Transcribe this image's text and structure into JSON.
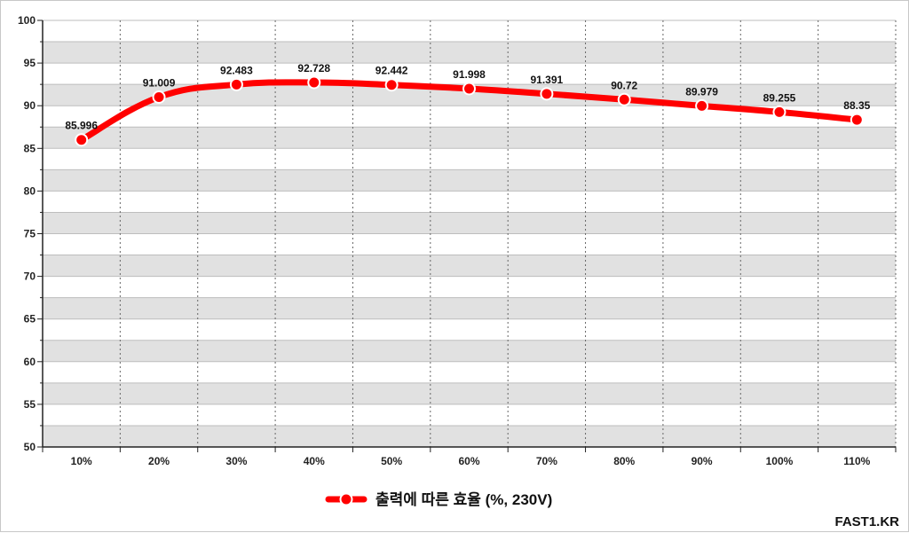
{
  "chart_data": {
    "type": "line",
    "categories": [
      "10%",
      "20%",
      "30%",
      "40%",
      "50%",
      "60%",
      "70%",
      "80%",
      "90%",
      "100%",
      "110%"
    ],
    "series": [
      {
        "name": "출력에 따른 효율 (%, 230V)",
        "values": [
          85.996,
          91.009,
          92.483,
          92.728,
          92.442,
          91.998,
          91.391,
          90.72,
          89.979,
          89.255,
          88.35
        ],
        "labels": [
          "85.996",
          "91.009",
          "92.483",
          "92.728",
          "92.442",
          "91.998",
          "91.391",
          "90.72",
          "89.979",
          "89.255",
          "88.35"
        ],
        "color": "#ff0000"
      }
    ],
    "ylim": [
      50,
      100
    ],
    "yticks": [
      "50",
      "55",
      "60",
      "65",
      "70",
      "75",
      "80",
      "85",
      "90",
      "95",
      "100"
    ],
    "grid": true,
    "legend": "bottom-center",
    "band_color": "#e1e1e1",
    "title": "",
    "xlabel": "",
    "ylabel": ""
  },
  "watermark": "FAST1.KR"
}
